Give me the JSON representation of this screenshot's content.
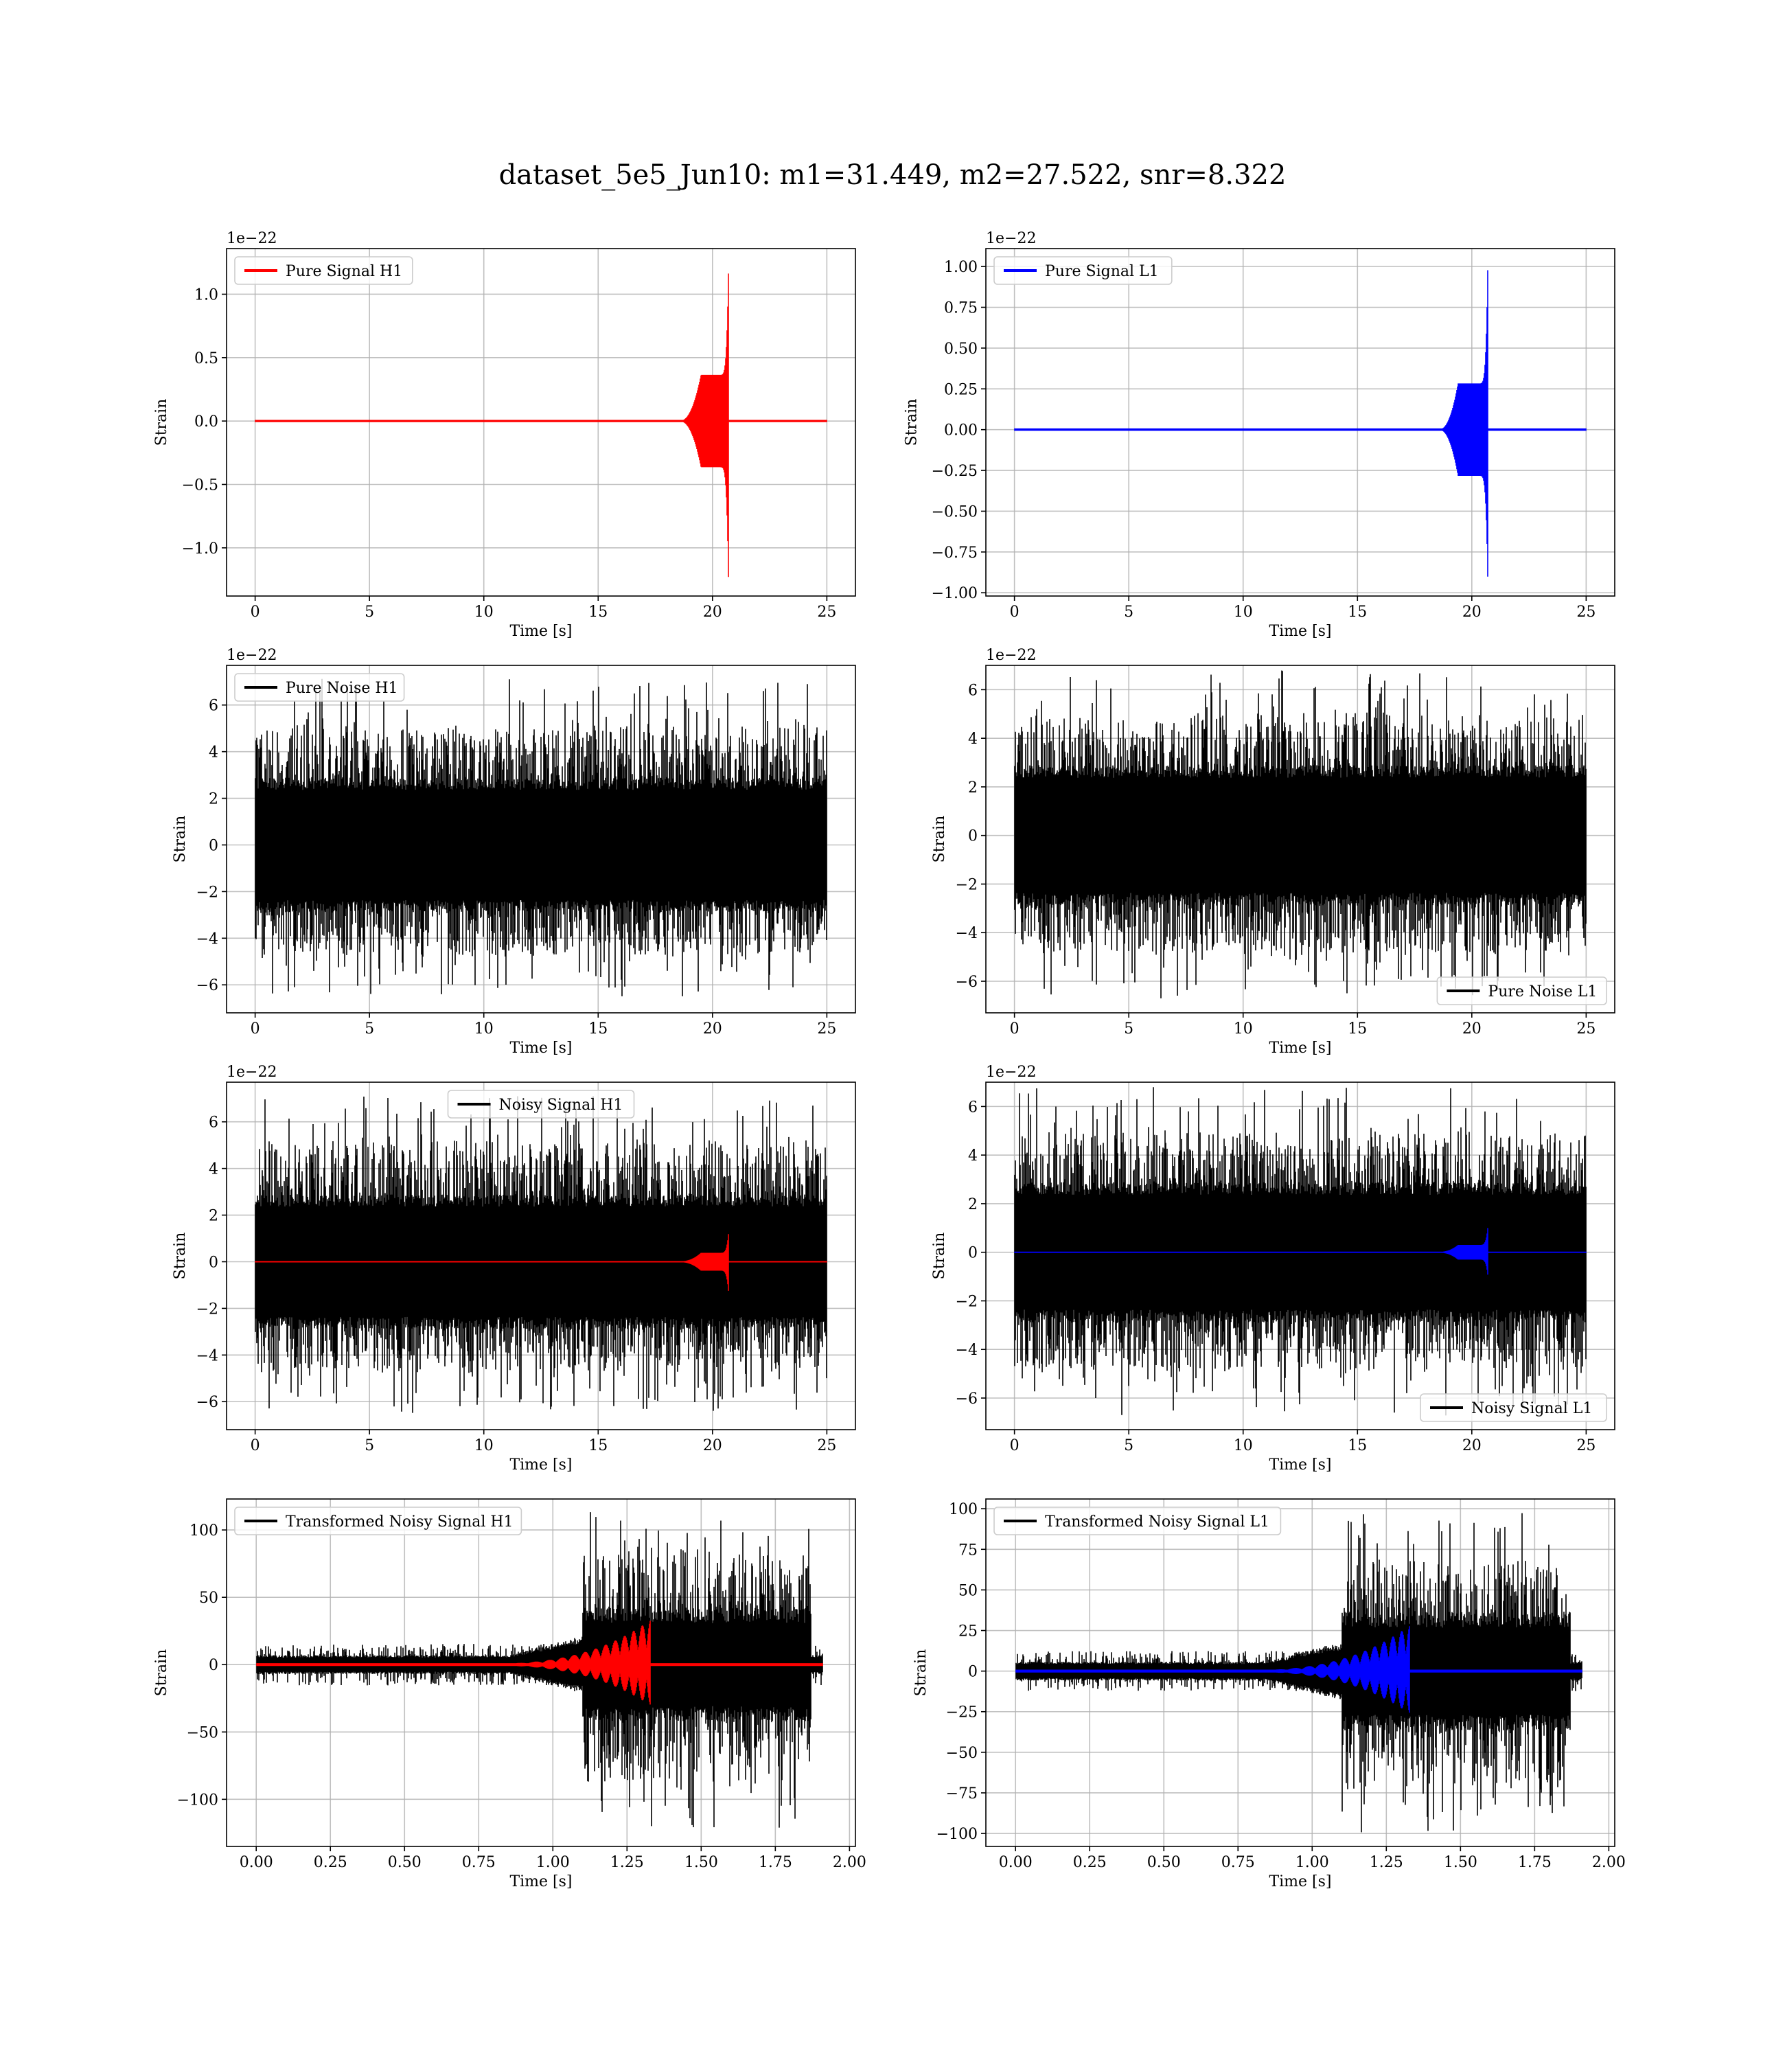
{
  "figure": {
    "suptitle": "dataset_5e5_Jun10: m1=31.449, m2=27.522, snr=8.322"
  },
  "chart_data": [
    {
      "type": "line",
      "panel": "pure-signal-h1",
      "xlabel": "Time [s]",
      "ylabel": "Strain",
      "offset_text": "1e−22",
      "xlim": [
        -1.25,
        26.25
      ],
      "ylim": [
        -1.38,
        1.36
      ],
      "xticks": [
        0,
        5,
        10,
        15,
        20,
        25
      ],
      "xtick_labels": [
        "0",
        "5",
        "10",
        "15",
        "20",
        "25"
      ],
      "yticks": [
        -1.0,
        -0.5,
        0.0,
        0.5,
        1.0
      ],
      "ytick_labels": [
        "−1.0",
        "−0.5",
        "0.0",
        "0.5",
        "1.0"
      ],
      "grid": true,
      "legend_position": "upper left",
      "series": [
        {
          "name": "Pure Signal H1",
          "color": "#ff0000",
          "kind": "chirp",
          "x_start": 0,
          "x_end": 25,
          "onset": 18.6,
          "plateau_start": 19.5,
          "plateau_end": 20.3,
          "plateau_amp": 0.36,
          "merger": 20.7,
          "peak_pos": 1.2,
          "peak_neg": -1.27
        }
      ]
    },
    {
      "type": "line",
      "panel": "pure-signal-l1",
      "xlabel": "Time [s]",
      "ylabel": "Strain",
      "offset_text": "1e−22",
      "xlim": [
        -1.25,
        26.25
      ],
      "ylim": [
        -1.02,
        1.11
      ],
      "xticks": [
        0,
        5,
        10,
        15,
        20,
        25
      ],
      "xtick_labels": [
        "0",
        "5",
        "10",
        "15",
        "20",
        "25"
      ],
      "yticks": [
        -1.0,
        -0.75,
        -0.5,
        -0.25,
        0.0,
        0.25,
        0.5,
        0.75,
        1.0
      ],
      "ytick_labels": [
        "−1.00",
        "−0.75",
        "−0.50",
        "−0.25",
        "0.00",
        "0.25",
        "0.50",
        "0.75",
        "1.00"
      ],
      "grid": true,
      "legend_position": "upper left",
      "series": [
        {
          "name": "Pure Signal L1",
          "color": "#0000ff",
          "kind": "chirp",
          "x_start": 0,
          "x_end": 25,
          "onset": 18.6,
          "plateau_start": 19.4,
          "plateau_end": 20.3,
          "plateau_amp": 0.28,
          "merger": 20.7,
          "peak_pos": 1.01,
          "peak_neg": -0.93
        }
      ]
    },
    {
      "type": "line",
      "panel": "pure-noise-h1",
      "xlabel": "Time [s]",
      "ylabel": "Strain",
      "offset_text": "1e−22",
      "xlim": [
        -1.25,
        26.25
      ],
      "ylim": [
        -7.2,
        7.7
      ],
      "xticks": [
        0,
        5,
        10,
        15,
        20,
        25
      ],
      "xtick_labels": [
        "0",
        "5",
        "10",
        "15",
        "20",
        "25"
      ],
      "yticks": [
        -6,
        -4,
        -2,
        0,
        2,
        4,
        6
      ],
      "ytick_labels": [
        "−6",
        "−4",
        "−2",
        "0",
        "2",
        "4",
        "6"
      ],
      "grid": true,
      "legend_position": "upper left",
      "series": [
        {
          "name": "Pure Noise H1",
          "color": "#000000",
          "kind": "noise",
          "x_start": 0,
          "x_end": 25,
          "band": 2.6,
          "max_pos": 7.1,
          "max_neg": -6.5
        }
      ]
    },
    {
      "type": "line",
      "panel": "pure-noise-l1",
      "xlabel": "Time [s]",
      "ylabel": "Strain",
      "offset_text": "1e−22",
      "xlim": [
        -1.25,
        26.25
      ],
      "ylim": [
        -7.3,
        7.0
      ],
      "xticks": [
        0,
        5,
        10,
        15,
        20,
        25
      ],
      "xtick_labels": [
        "0",
        "5",
        "10",
        "15",
        "20",
        "25"
      ],
      "yticks": [
        -6,
        -4,
        -2,
        0,
        2,
        4,
        6
      ],
      "ytick_labels": [
        "−6",
        "−4",
        "−2",
        "0",
        "2",
        "4",
        "6"
      ],
      "grid": true,
      "legend_position": "lower right",
      "series": [
        {
          "name": "Pure Noise L1",
          "color": "#000000",
          "kind": "noise",
          "x_start": 0,
          "x_end": 25,
          "band": 2.6,
          "max_pos": 6.8,
          "max_neg": -6.7
        }
      ]
    },
    {
      "type": "line",
      "panel": "noisy-signal-h1",
      "xlabel": "Time [s]",
      "ylabel": "Strain",
      "offset_text": "1e−22",
      "xlim": [
        -1.25,
        26.25
      ],
      "ylim": [
        -7.2,
        7.7
      ],
      "xticks": [
        0,
        5,
        10,
        15,
        20,
        25
      ],
      "xtick_labels": [
        "0",
        "5",
        "10",
        "15",
        "20",
        "25"
      ],
      "yticks": [
        -6,
        -4,
        -2,
        0,
        2,
        4,
        6
      ],
      "ytick_labels": [
        "−6",
        "−4",
        "−2",
        "0",
        "2",
        "4",
        "6"
      ],
      "grid": true,
      "legend_position": "upper center",
      "series": [
        {
          "name": "Noisy Signal H1",
          "color": "#000000",
          "kind": "noise",
          "x_start": 0,
          "x_end": 25,
          "band": 2.6,
          "max_pos": 7.1,
          "max_neg": -6.5
        },
        {
          "color": "#ff0000",
          "kind": "chirp",
          "x_start": 0,
          "x_end": 25,
          "onset": 18.6,
          "plateau_start": 19.5,
          "plateau_end": 20.3,
          "plateau_amp": 0.36,
          "merger": 20.7,
          "peak_pos": 1.2,
          "peak_neg": -1.27
        }
      ]
    },
    {
      "type": "line",
      "panel": "noisy-signal-l1",
      "xlabel": "Time [s]",
      "ylabel": "Strain",
      "offset_text": "1e−22",
      "xlim": [
        -1.25,
        26.25
      ],
      "ylim": [
        -7.3,
        7.0
      ],
      "xticks": [
        0,
        5,
        10,
        15,
        20,
        25
      ],
      "xtick_labels": [
        "0",
        "5",
        "10",
        "15",
        "20",
        "25"
      ],
      "yticks": [
        -6,
        -4,
        -2,
        0,
        2,
        4,
        6
      ],
      "ytick_labels": [
        "−6",
        "−4",
        "−2",
        "0",
        "2",
        "4",
        "6"
      ],
      "grid": true,
      "legend_position": "lower right",
      "series": [
        {
          "name": "Noisy Signal L1",
          "color": "#000000",
          "kind": "noise",
          "x_start": 0,
          "x_end": 25,
          "band": 2.6,
          "max_pos": 6.8,
          "max_neg": -6.7
        },
        {
          "color": "#0000ff",
          "kind": "chirp",
          "x_start": 0,
          "x_end": 25,
          "onset": 18.6,
          "plateau_start": 19.4,
          "plateau_end": 20.3,
          "plateau_amp": 0.28,
          "merger": 20.7,
          "peak_pos": 1.01,
          "peak_neg": -0.93
        }
      ]
    },
    {
      "type": "line",
      "panel": "transformed-noisy-signal-h1",
      "xlabel": "Time [s]",
      "ylabel": "Strain",
      "offset_text": "",
      "xlim": [
        -0.1,
        2.02
      ],
      "ylim": [
        -135,
        123
      ],
      "xticks": [
        0.0,
        0.25,
        0.5,
        0.75,
        1.0,
        1.25,
        1.5,
        1.75,
        2.0
      ],
      "xtick_labels": [
        "0.00",
        "0.25",
        "0.50",
        "0.75",
        "1.00",
        "1.25",
        "1.50",
        "1.75",
        "2.00"
      ],
      "yticks": [
        -100,
        -50,
        0,
        50,
        100
      ],
      "ytick_labels": [
        "−100",
        "−50",
        "0",
        "50",
        "100"
      ],
      "grid": true,
      "legend_position": "upper left",
      "series": [
        {
          "name": "Transformed Noisy Signal H1",
          "color": "#000000",
          "kind": "transformed_noise",
          "x_start": 0,
          "x_end": 1.91,
          "early_band": 6,
          "early_spike": 15,
          "ramp_start": 0.85,
          "burst_start": 1.1,
          "burst_end": 1.87,
          "burst_band": 38,
          "max_pos": 113,
          "max_neg": -122
        },
        {
          "color": "#ff0000",
          "kind": "chirp_short",
          "x_start": 0,
          "x_end": 1.91,
          "onset": 0.7,
          "merger": 1.33,
          "peak_pos": 33,
          "peak_neg": -30,
          "cycles": 14
        }
      ]
    },
    {
      "type": "line",
      "panel": "transformed-noisy-signal-l1",
      "xlabel": "Time [s]",
      "ylabel": "Strain",
      "offset_text": "",
      "xlim": [
        -0.1,
        2.02
      ],
      "ylim": [
        -108,
        106
      ],
      "xticks": [
        0.0,
        0.25,
        0.5,
        0.75,
        1.0,
        1.25,
        1.5,
        1.75,
        2.0
      ],
      "xtick_labels": [
        "0.00",
        "0.25",
        "0.50",
        "0.75",
        "1.00",
        "1.25",
        "1.50",
        "1.75",
        "2.00"
      ],
      "yticks": [
        -100,
        -75,
        -50,
        -25,
        0,
        25,
        50,
        75,
        100
      ],
      "ytick_labels": [
        "−100",
        "−75",
        "−50",
        "−25",
        "0",
        "25",
        "50",
        "75",
        "100"
      ],
      "grid": true,
      "legend_position": "upper left",
      "series": [
        {
          "name": "Transformed Noisy Signal L1",
          "color": "#000000",
          "kind": "transformed_noise",
          "x_start": 0,
          "x_end": 1.91,
          "early_band": 5,
          "early_spike": 12,
          "ramp_start": 0.85,
          "burst_start": 1.1,
          "burst_end": 1.87,
          "burst_band": 33,
          "max_pos": 97,
          "max_neg": -100
        },
        {
          "color": "#0000ff",
          "kind": "chirp_short",
          "x_start": 0,
          "x_end": 1.91,
          "onset": 0.7,
          "merger": 1.33,
          "peak_pos": 28,
          "peak_neg": -26,
          "cycles": 14
        }
      ]
    }
  ]
}
